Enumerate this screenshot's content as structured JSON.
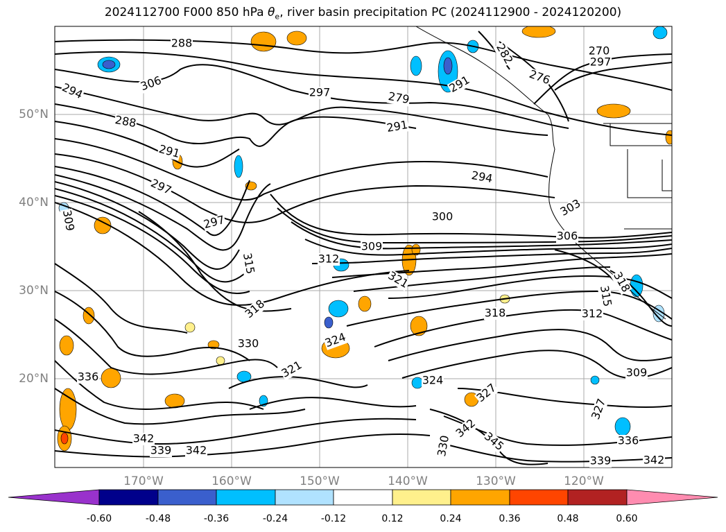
{
  "title": {
    "prefix": "2024112700 F000 850 hPa ",
    "theta": "θ",
    "theta_sub": "e",
    "suffix": ", river basin precipitation PC (2024112900 - 2024120200)"
  },
  "lon_labels": [
    "170°W",
    "160°W",
    "150°W",
    "140°W",
    "130°W",
    "120°W"
  ],
  "lat_labels": [
    "50°N",
    "40°N",
    "30°N",
    "20°N"
  ],
  "colorbar": {
    "colors": [
      "#9932cc",
      "#00008b",
      "#3a5fcd",
      "#00bfff",
      "#b0e2ff",
      "#ffffff",
      "#fff08c",
      "#ffa500",
      "#ff4500",
      "#b22222",
      "#ff8cb0"
    ],
    "tick_labels": [
      "-0.60",
      "-0.48",
      "-0.36",
      "-0.24",
      "-0.12",
      "0.12",
      "0.24",
      "0.36",
      "0.48",
      "0.60"
    ]
  },
  "contour_labels": [
    "288",
    "306",
    "294",
    "288",
    "291",
    "297",
    "309",
    "297",
    "315",
    "318",
    "312",
    "330",
    "324",
    "321",
    "336",
    "342",
    "339",
    "342",
    "345",
    "330",
    "342",
    "336",
    "339",
    "342",
    "309",
    "312",
    "315",
    "318",
    "303",
    "306",
    "300",
    "309",
    "321",
    "318",
    "294",
    "297",
    "291",
    "279",
    "282",
    "276",
    "270",
    "297",
    "291",
    "327",
    "324",
    "327"
  ]
}
